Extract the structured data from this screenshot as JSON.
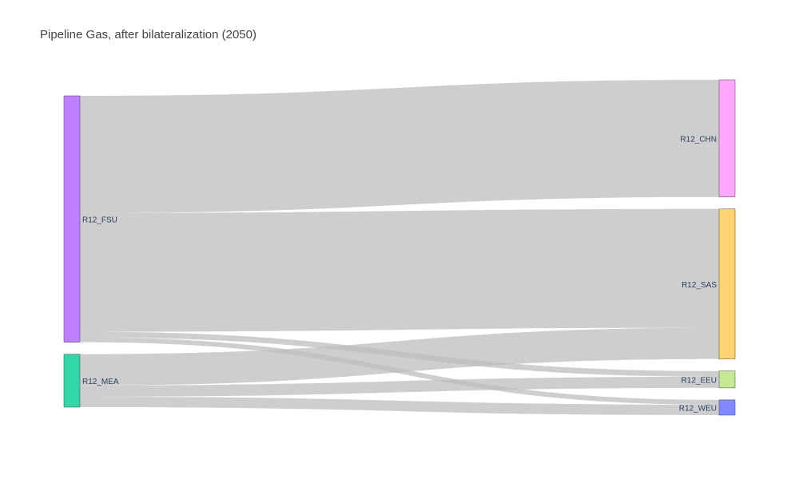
{
  "chart_data": {
    "type": "sankey",
    "title": "Pipeline Gas, after bilateralization (2050)",
    "link_color": "#bdbdbd",
    "nodes": [
      {
        "name": "R12_FSU",
        "color": "#bf80ff",
        "column": 0
      },
      {
        "name": "R12_MEA",
        "color": "#33d6a6",
        "column": 0
      },
      {
        "name": "R12_CHN",
        "color": "#ffa6ff",
        "column": 1
      },
      {
        "name": "R12_SAS",
        "color": "#ffd373",
        "column": 1
      },
      {
        "name": "R12_EEU",
        "color": "#c4e893",
        "column": 1
      },
      {
        "name": "R12_WEU",
        "color": "#8088ff",
        "column": 1
      }
    ],
    "links": [
      {
        "source": "R12_FSU",
        "target": "R12_CHN",
        "value": 146
      },
      {
        "source": "R12_FSU",
        "target": "R12_SAS",
        "value": 148
      },
      {
        "source": "R12_FSU",
        "target": "R12_EEU",
        "value": 7
      },
      {
        "source": "R12_FSU",
        "target": "R12_WEU",
        "value": 6
      },
      {
        "source": "R12_MEA",
        "target": "R12_SAS",
        "value": 39
      },
      {
        "source": "R12_MEA",
        "target": "R12_EEU",
        "value": 14
      },
      {
        "source": "R12_MEA",
        "target": "R12_WEU",
        "value": 13
      }
    ]
  }
}
